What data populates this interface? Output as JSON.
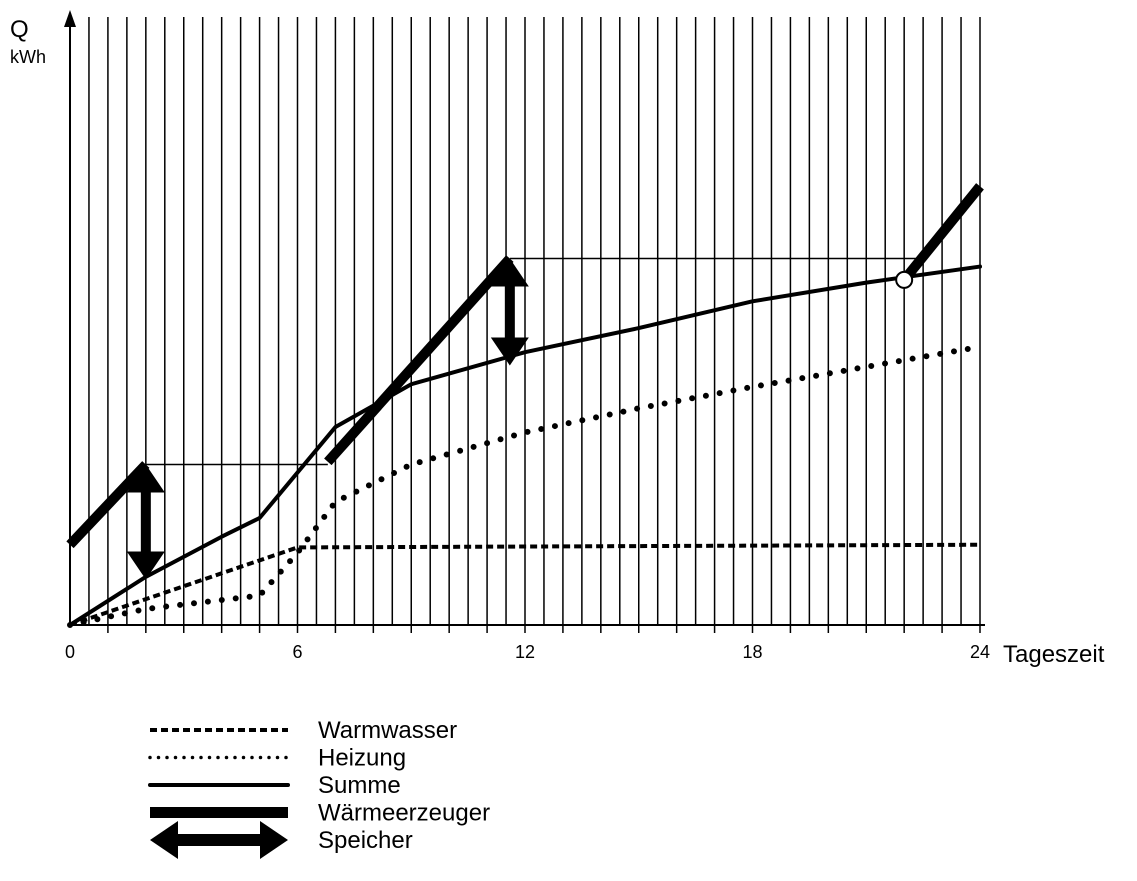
{
  "chart_data": {
    "type": "line",
    "ylabel": "Q",
    "yunit": "kWh",
    "xlabel": "Tageszeit",
    "xlim": [
      0,
      24
    ],
    "x_ticks": [
      0,
      6,
      12,
      18,
      24
    ],
    "grid": "vertical",
    "series": [
      {
        "name": "Warmwasser",
        "style": "dashed",
        "x": [
          0,
          6,
          24
        ],
        "y": [
          0,
          1.45,
          1.5
        ]
      },
      {
        "name": "Heizung",
        "style": "dotted",
        "x": [
          0,
          2,
          5,
          6,
          7,
          9,
          12,
          15,
          18,
          24
        ],
        "y": [
          0,
          0.3,
          0.55,
          1.35,
          2.3,
          3.0,
          3.6,
          4.05,
          4.45,
          5.2
        ]
      },
      {
        "name": "Summe",
        "style": "solid",
        "x": [
          0,
          2,
          4,
          5,
          7,
          9,
          12,
          15,
          18,
          21,
          24
        ],
        "y": [
          0,
          0.9,
          1.65,
          2.0,
          3.7,
          4.5,
          5.1,
          5.55,
          6.05,
          6.4,
          6.7
        ]
      },
      {
        "name": "Wärmeerzeuger",
        "style": "thick",
        "segments": [
          {
            "x": [
              0,
              2
            ],
            "y": [
              1.5,
              3.0
            ]
          },
          {
            "x": [
              6.8,
              11.6
            ],
            "y": [
              3.05,
              6.85
            ]
          },
          {
            "x": [
              22,
              24
            ],
            "y": [
              6.45,
              8.2
            ]
          }
        ]
      }
    ],
    "storage_arrows": {
      "name": "Speicher",
      "items": [
        {
          "x": 2,
          "from": 0.85,
          "to": 3.0
        },
        {
          "x": 11.6,
          "from": 4.85,
          "to": 6.85
        }
      ]
    },
    "reference_lines": [
      {
        "y": 3.0,
        "x": [
          2,
          6.8
        ]
      },
      {
        "y": 6.85,
        "x": [
          11.6,
          22.4
        ]
      }
    ],
    "marker": {
      "x": 22,
      "y": 6.45
    },
    "legend": {
      "position": "bottom-left",
      "entries": [
        {
          "label": "Warmwasser",
          "style": "dashed"
        },
        {
          "label": "Heizung",
          "style": "dotted"
        },
        {
          "label": "Summe",
          "style": "solid"
        },
        {
          "label": "Wärmeerzeuger",
          "style": "thick"
        },
        {
          "label": "Speicher",
          "style": "double-arrow"
        }
      ]
    }
  }
}
